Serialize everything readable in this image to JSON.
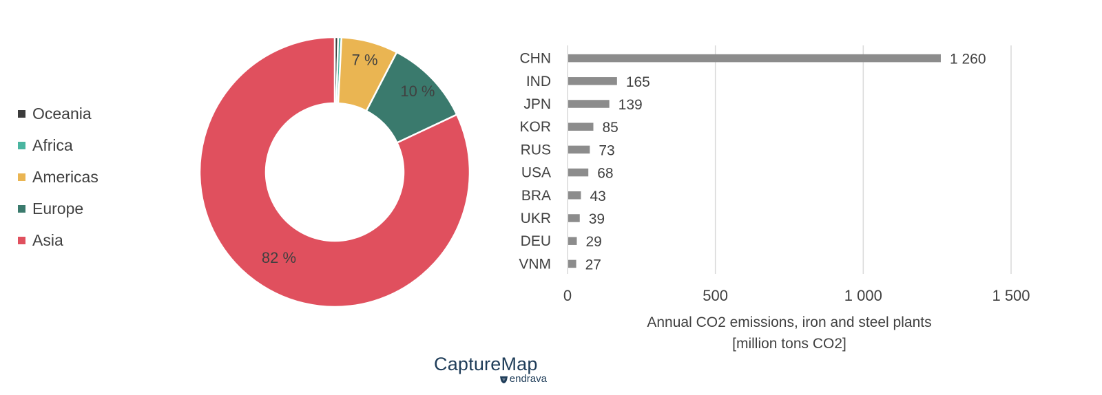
{
  "colors": {
    "Oceania": "#3b3b3b",
    "Africa": "#4ab5a0",
    "Americas": "#eab552",
    "Europe": "#3a7a6d",
    "Asia": "#e0505e",
    "bar": "#8c8c8c",
    "grid": "#d9d9d9",
    "text": "#404040",
    "brand": "#1f3d59"
  },
  "chart_data": [
    {
      "type": "pie",
      "style": "donut",
      "legend_position": "left",
      "legend": [
        "Oceania",
        "Africa",
        "Americas",
        "Europe",
        "Asia"
      ],
      "slices": [
        {
          "name": "Oceania",
          "value": 0.4,
          "label": ""
        },
        {
          "name": "Africa",
          "value": 0.4,
          "label": ""
        },
        {
          "name": "Americas",
          "value": 6.8,
          "label": "7 %"
        },
        {
          "name": "Europe",
          "value": 10.4,
          "label": "10 %"
        },
        {
          "name": "Asia",
          "value": 82.0,
          "label": "82 %"
        }
      ]
    },
    {
      "type": "bar",
      "orientation": "horizontal",
      "categories": [
        "CHN",
        "IND",
        "JPN",
        "KOR",
        "RUS",
        "USA",
        "BRA",
        "UKR",
        "DEU",
        "VNM"
      ],
      "values": [
        1260,
        165,
        139,
        85,
        73,
        68,
        43,
        39,
        29,
        27
      ],
      "value_labels": [
        "1 260",
        "165",
        "139",
        "85",
        "73",
        "68",
        "43",
        "39",
        "29",
        "27"
      ],
      "xlim": [
        0,
        1500
      ],
      "xticks": [
        0,
        500,
        1000,
        1500
      ],
      "xtick_labels": [
        "0",
        "500",
        "1 000",
        "1 500"
      ],
      "xlabel_lines": [
        "Annual CO2 emissions, iron and steel plants",
        "[million tons CO2]"
      ],
      "grid": "vertical"
    }
  ],
  "brand": {
    "name": "CaptureMap",
    "sub": "endrava",
    "mark_icon": "shield-leaf-icon"
  }
}
